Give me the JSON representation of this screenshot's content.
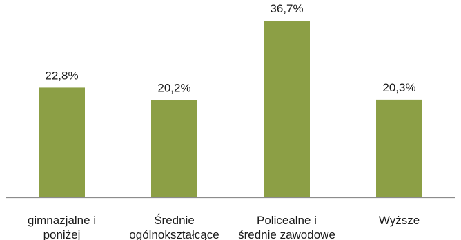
{
  "chart_data": {
    "type": "bar",
    "categories": [
      [
        "gimnazjalne i",
        "poniżej"
      ],
      [
        "Średnie",
        "ogólnokształcące"
      ],
      [
        "Policealne i",
        "średnie zawodowe"
      ],
      [
        "Wyższe"
      ]
    ],
    "values": [
      22.8,
      20.2,
      36.7,
      20.3
    ],
    "data_labels": [
      "22,8%",
      "20,2%",
      "36,7%",
      "20,3%"
    ],
    "unit": "%",
    "ylim": [
      0,
      40
    ],
    "grid": false,
    "legend": "none",
    "colors": {
      "bar": "#8c9f45",
      "axis": "#8c8c8c",
      "text": "#1a1a1a"
    }
  }
}
